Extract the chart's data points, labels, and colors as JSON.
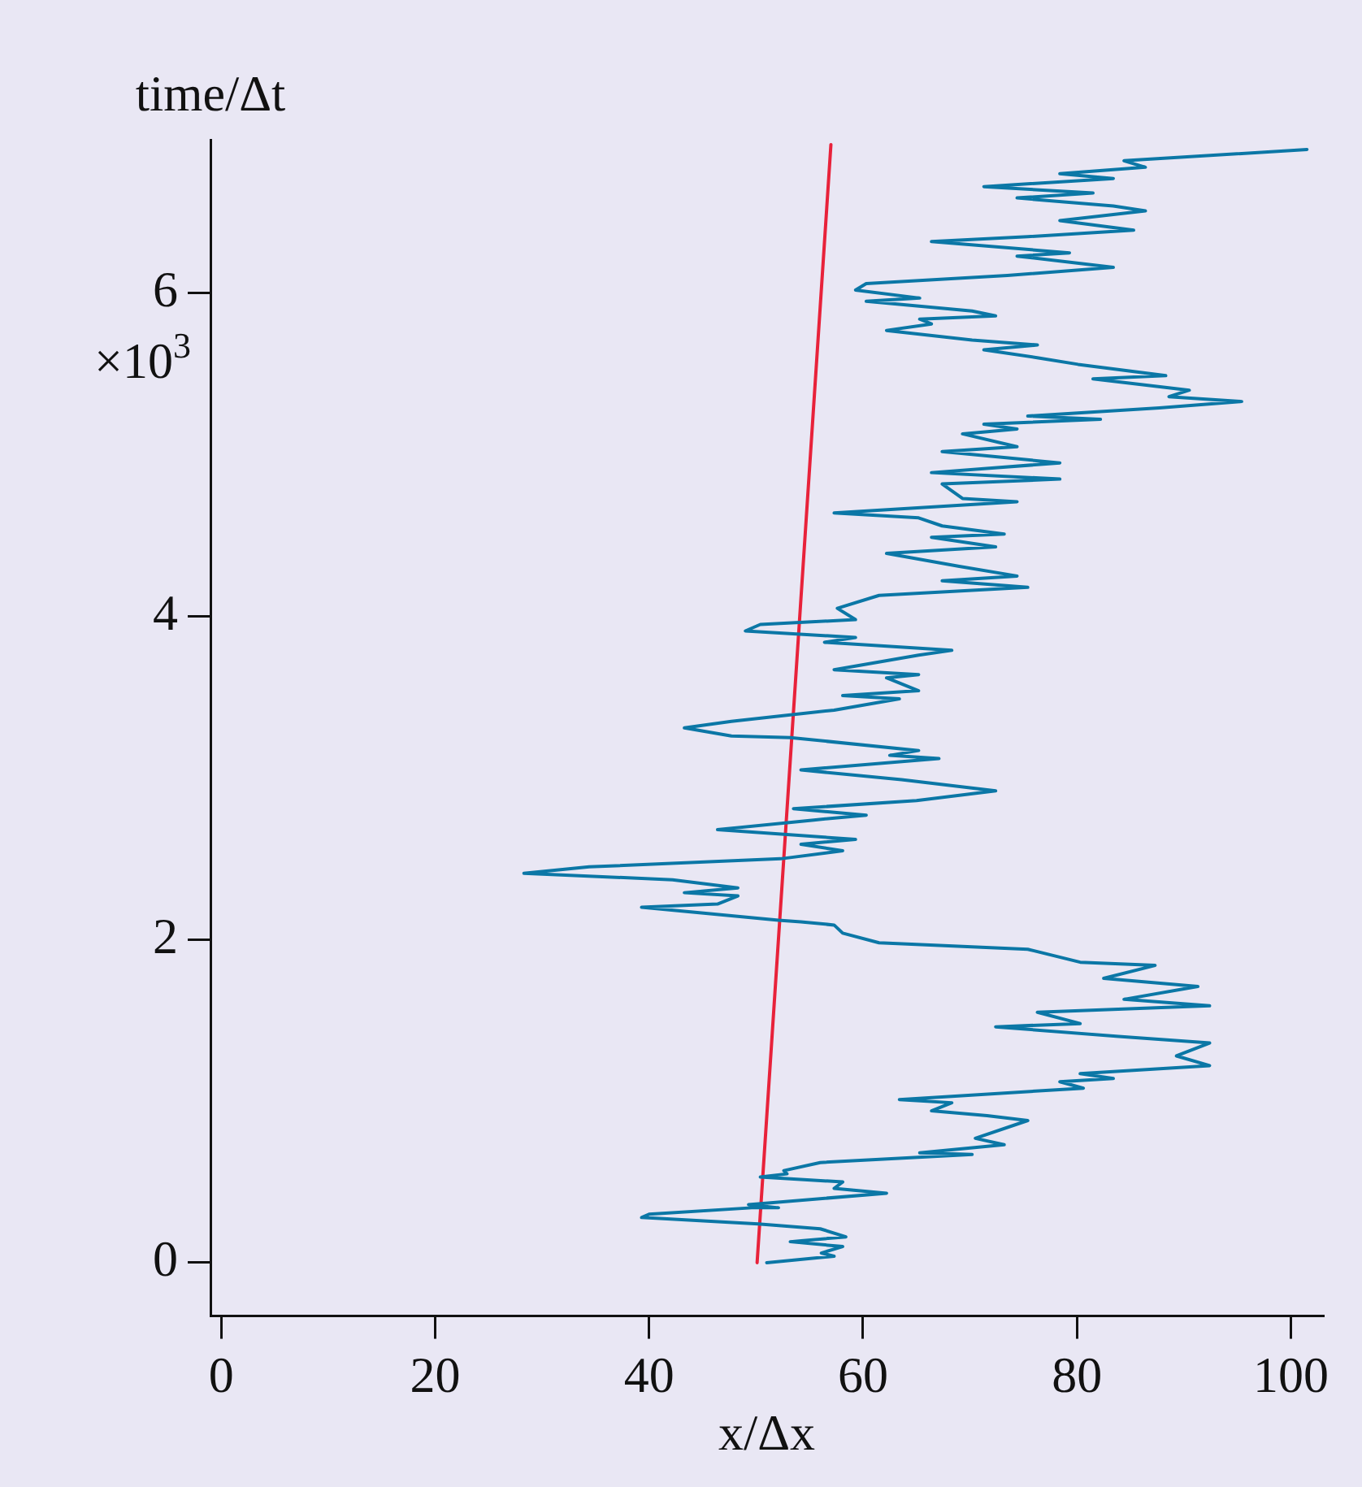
{
  "chart_data": {
    "type": "line",
    "xlabel": "x/Δx",
    "ylabel": "time/Δt",
    "annotations": [
      "×10$^{3}$"
    ],
    "xlim": [
      -1,
      103
    ],
    "ylim": [
      -0.33,
      6.95
    ],
    "xticks": [
      0,
      20,
      40,
      60,
      80,
      100
    ],
    "yticks": [
      0,
      2,
      4,
      6
    ],
    "grid": false,
    "legend": false,
    "marker": "none",
    "line_style": "solid",
    "series": [
      {
        "color": "#0b77a6",
        "x": [
          51,
          57.3,
          56.1,
          58.1,
          53.2,
          58.4,
          56,
          50.2,
          39.3,
          40,
          49.6,
          52.1,
          49.3,
          62.2,
          57.3,
          58.1,
          50.4,
          52.9,
          52.6,
          56,
          70.2,
          65.3,
          73.2,
          70.5,
          75.4,
          71.6,
          66.4,
          68.3,
          63.4,
          80.6,
          78.4,
          83.4,
          80.3,
          92.4,
          89.3,
          92.4,
          83.9,
          72.4,
          80.3,
          76.3,
          92.4,
          84.4,
          91.3,
          82.5,
          87.3,
          80.3,
          75.4,
          61.5,
          58.1,
          57.3,
          54.2,
          52.1,
          39.3,
          46.4,
          48.3,
          43.3,
          48.3,
          42.2,
          28.3,
          34.4,
          52.3,
          58.1,
          54.2,
          59.3,
          46.4,
          55.4,
          60.3,
          53.5,
          65,
          72.4,
          63.6,
          54.2,
          67.1,
          62.5,
          65.2,
          53.2,
          47.7,
          43.3,
          47.7,
          57.3,
          63.4,
          58.1,
          65.2,
          62.2,
          65.2,
          57.3,
          65.2,
          68.3,
          56.4,
          59.3,
          49,
          50.4,
          59.3,
          57.6,
          61.5,
          75.4,
          67.4,
          74.4,
          69,
          62.2,
          72.4,
          66.4,
          73.2,
          67.4,
          65.2,
          57.3,
          74.4,
          69.3,
          67.4,
          78.4,
          66.4,
          78.4,
          67.4,
          74.4,
          69.3,
          74.4,
          71.3,
          82.2,
          75.4,
          87.7,
          95.4,
          88.6,
          90.5,
          81.5,
          88.3,
          80.1,
          76.4,
          71.3,
          76.3,
          70.2,
          62.2,
          66.4,
          65.3,
          72.4,
          70.2,
          60.3,
          65.3,
          59.3,
          60.3,
          73.5,
          83.4,
          74.4,
          79.3,
          66.4,
          75.4,
          85.3,
          78.4,
          86.4,
          83.4,
          74.4,
          81.5,
          71.3,
          83.4,
          78.4,
          86.4,
          84.4,
          101.5
        ],
        "values": [
          0,
          0.04,
          0.06,
          0.1,
          0.13,
          0.16,
          0.21,
          0.24,
          0.28,
          0.3,
          0.34,
          0.34,
          0.36,
          0.43,
          0.46,
          0.5,
          0.53,
          0.55,
          0.57,
          0.62,
          0.67,
          0.68,
          0.73,
          0.77,
          0.88,
          0.91,
          0.94,
          0.99,
          1.01,
          1.08,
          1.12,
          1.14,
          1.17,
          1.22,
          1.28,
          1.36,
          1.4,
          1.46,
          1.48,
          1.55,
          1.59,
          1.63,
          1.71,
          1.76,
          1.84,
          1.86,
          1.94,
          1.98,
          2.04,
          2.09,
          2.11,
          2.12,
          2.2,
          2.22,
          2.27,
          2.29,
          2.32,
          2.37,
          2.41,
          2.45,
          2.5,
          2.55,
          2.59,
          2.62,
          2.68,
          2.74,
          2.77,
          2.81,
          2.86,
          2.92,
          2.99,
          3.05,
          3.12,
          3.14,
          3.17,
          3.25,
          3.26,
          3.31,
          3.35,
          3.42,
          3.49,
          3.51,
          3.54,
          3.62,
          3.64,
          3.67,
          3.76,
          3.79,
          3.84,
          3.87,
          3.91,
          3.95,
          3.98,
          4.05,
          4.13,
          4.18,
          4.22,
          4.25,
          4.31,
          4.39,
          4.43,
          4.49,
          4.51,
          4.56,
          4.61,
          4.64,
          4.71,
          4.73,
          4.82,
          4.85,
          4.89,
          4.95,
          5.02,
          5.05,
          5.13,
          5.16,
          5.19,
          5.22,
          5.24,
          5.29,
          5.33,
          5.36,
          5.4,
          5.47,
          5.49,
          5.56,
          5.6,
          5.65,
          5.68,
          5.71,
          5.77,
          5.81,
          5.84,
          5.86,
          5.89,
          5.95,
          5.97,
          6.02,
          6.06,
          6.11,
          6.16,
          6.23,
          6.25,
          6.32,
          6.35,
          6.39,
          6.45,
          6.51,
          6.54,
          6.59,
          6.62,
          6.66,
          6.71,
          6.74,
          6.78,
          6.82,
          6.89
        ]
      },
      {
        "color": "#e8223a",
        "x": [
          50.1,
          57
        ],
        "values": [
          0,
          6.92
        ]
      }
    ]
  }
}
